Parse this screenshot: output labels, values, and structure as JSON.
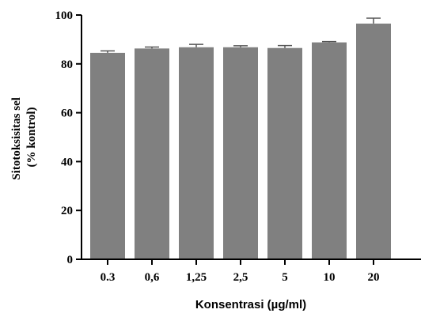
{
  "chart_data": {
    "type": "bar",
    "categories": [
      "0.3",
      "0,6",
      "1,25",
      "2,5",
      "5",
      "10",
      "20"
    ],
    "values": [
      84.5,
      86.3,
      86.8,
      86.8,
      86.5,
      88.8,
      96.5
    ],
    "errors": [
      0.8,
      0.6,
      1.2,
      0.6,
      1.0,
      0.3,
      2.2
    ],
    "xlabel": "Konsentrasi (µg/ml)",
    "ylabel_lines": [
      "Sitotoksisitas sel",
      "(% kontrol)"
    ],
    "ylim": [
      0,
      100
    ],
    "yticks": [
      0,
      20,
      40,
      60,
      80,
      100
    ],
    "bar_color": "#808080",
    "grid": false,
    "legend": "none"
  }
}
